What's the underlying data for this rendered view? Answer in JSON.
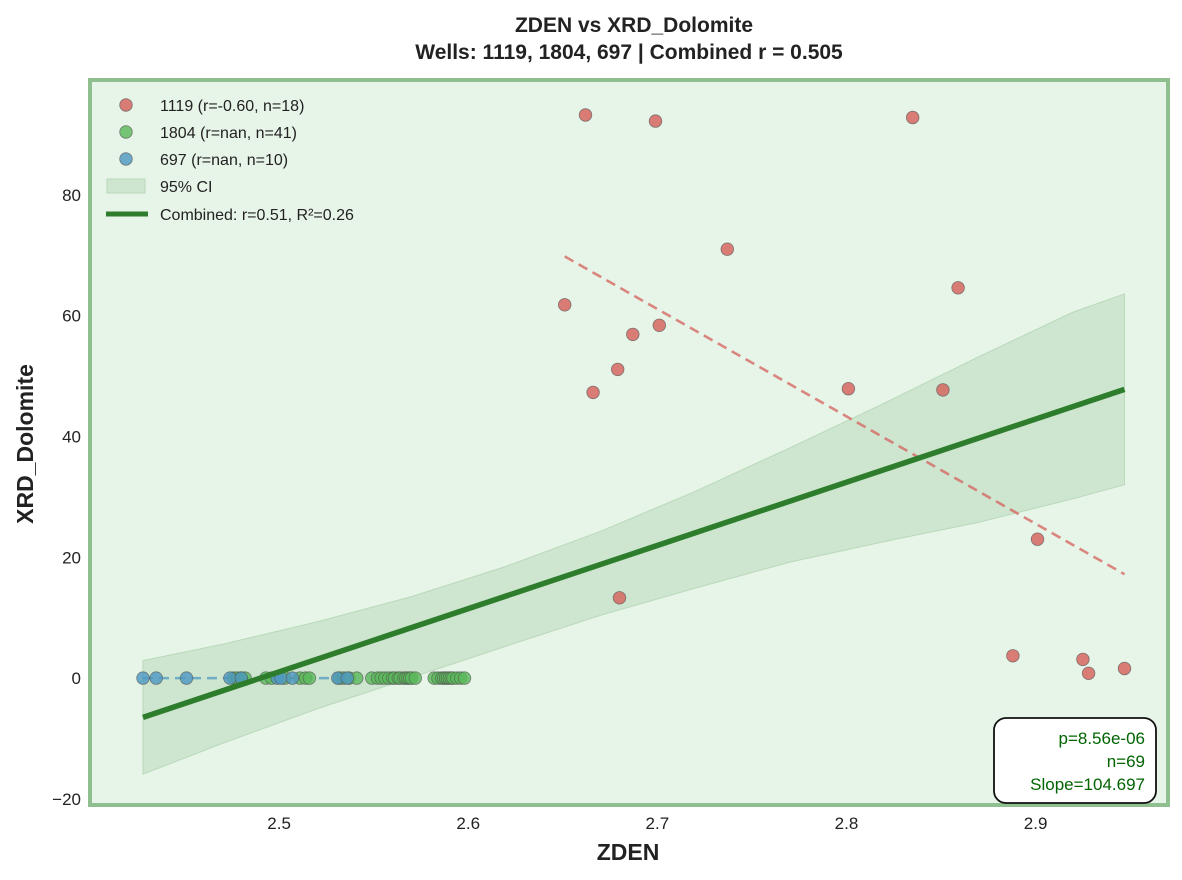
{
  "chart_data": {
    "type": "scatter",
    "title": "ZDEN vs XRD_Dolomite",
    "subtitle": "Wells: 1119, 1804, 697 | Combined r = 0.505",
    "xlabel": "ZDEN",
    "ylabel": "XRD_Dolomite",
    "xlim": [
      2.4,
      2.97
    ],
    "ylim": [
      -21,
      99
    ],
    "xticks": [
      2.5,
      2.6,
      2.7,
      2.8,
      2.9
    ],
    "yticks": [
      -20,
      0,
      20,
      40,
      60,
      80
    ],
    "xtick_labels": [
      "2.5",
      "2.6",
      "2.7",
      "2.8",
      "2.9"
    ],
    "ytick_labels": [
      "−20",
      "0",
      "20",
      "40",
      "60",
      "80"
    ],
    "grid": false,
    "legend_position": "top-left",
    "background_color": "#e7f4e8",
    "frame_color": "#8fbf8f",
    "series": [
      {
        "name": "1119 (r=-0.60, n=18)",
        "color": "#d4625c",
        "x": [
          2.651,
          2.662,
          2.666,
          2.679,
          2.68,
          2.687,
          2.699,
          2.701,
          2.737,
          2.801,
          2.835,
          2.851,
          2.859,
          2.888,
          2.901,
          2.925,
          2.928,
          2.947
        ],
        "y": [
          61.8,
          93.2,
          47.3,
          51.1,
          13.3,
          56.9,
          92.2,
          58.4,
          71.0,
          47.9,
          92.8,
          47.7,
          64.6,
          3.7,
          23.0,
          3.1,
          0.8,
          1.6
        ],
        "trend": {
          "x": [
            2.651,
            2.947
          ],
          "y": [
            69.8,
            17.2
          ],
          "style": "dashed"
        }
      },
      {
        "name": "1804 (r=nan, n=41)",
        "color": "#5cb85c",
        "x": [
          2.476,
          2.478,
          2.48,
          2.482,
          2.493,
          2.496,
          2.503,
          2.511,
          2.514,
          2.516,
          2.532,
          2.534,
          2.537,
          2.541,
          2.549,
          2.552,
          2.554,
          2.556,
          2.558,
          2.56,
          2.561,
          2.563,
          2.564,
          2.566,
          2.567,
          2.568,
          2.569,
          2.57,
          2.572,
          2.582,
          2.584,
          2.586,
          2.587,
          2.588,
          2.589,
          2.59,
          2.591,
          2.592,
          2.594,
          2.596,
          2.598
        ],
        "y": [
          0,
          0,
          0,
          0,
          0,
          0,
          0,
          0,
          0,
          0,
          0,
          0,
          0,
          0,
          0,
          0,
          0,
          0,
          0,
          0,
          0,
          0,
          0,
          0,
          0,
          0,
          0,
          0,
          0,
          0,
          0,
          0,
          0,
          0,
          0,
          0,
          0,
          0,
          0,
          0,
          0
        ]
      },
      {
        "name": "697 (r=nan, n=10)",
        "color": "#4f98c2",
        "x": [
          2.428,
          2.435,
          2.451,
          2.474,
          2.48,
          2.499,
          2.501,
          2.507,
          2.531,
          2.536
        ],
        "y": [
          0,
          0,
          0,
          0,
          0,
          0,
          0,
          0,
          0,
          0
        ],
        "trend": {
          "x": [
            2.428,
            2.536
          ],
          "y": [
            0,
            0
          ],
          "style": "dashed"
        }
      }
    ],
    "fit": {
      "name": "Combined: r=0.51, R²=0.26",
      "color": "#2d7d2d",
      "x": [
        2.428,
        2.947
      ],
      "y": [
        -6.5,
        47.8
      ]
    },
    "ci": {
      "name": "95% CI",
      "color": "#b9d9b9",
      "x": [
        2.428,
        2.47,
        2.52,
        2.57,
        2.62,
        2.67,
        2.72,
        2.77,
        2.82,
        2.87,
        2.92,
        2.947
      ],
      "upper": [
        2.9,
        5.6,
        9.3,
        13.5,
        18.5,
        24.3,
        30.9,
        38.1,
        45.5,
        53.2,
        60.6,
        63.6
      ],
      "lower": [
        -15.9,
        -10.8,
        -5.1,
        0.1,
        5.3,
        10.4,
        14.9,
        19.2,
        22.6,
        25.8,
        29.7,
        32.0
      ]
    },
    "stats_box": {
      "lines": [
        "p=8.56e-06",
        "n=69",
        "Slope=104.697"
      ],
      "text_color": "#006400"
    }
  }
}
